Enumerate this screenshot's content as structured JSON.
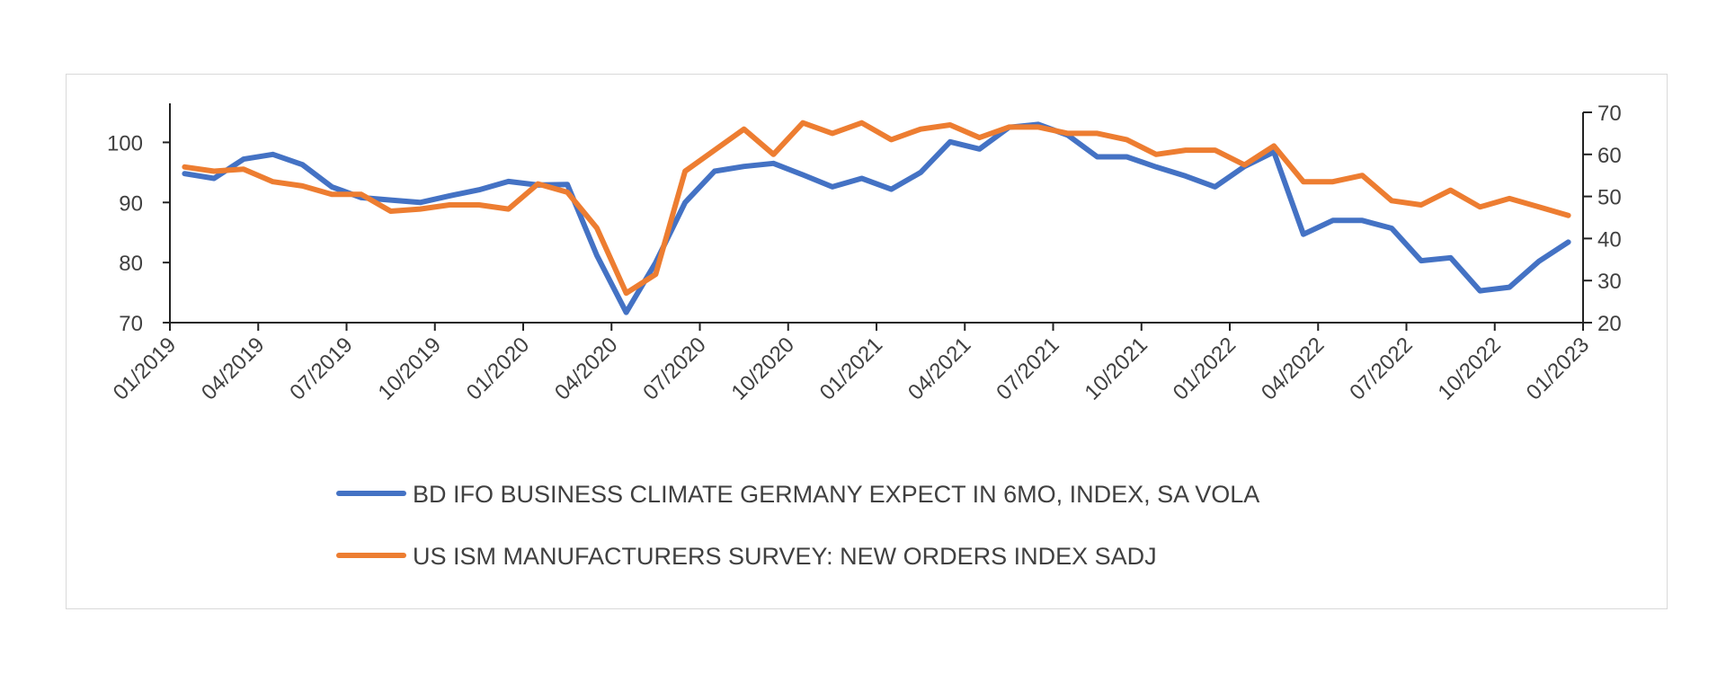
{
  "chart_data": {
    "type": "line",
    "title": "",
    "xlabel": "",
    "ylabel": "",
    "x_ticks": [
      "01/2019",
      "04/2019",
      "07/2019",
      "10/2019",
      "01/2020",
      "04/2020",
      "07/2020",
      "10/2020",
      "01/2021",
      "04/2021",
      "07/2021",
      "10/2021",
      "01/2022",
      "04/2022",
      "07/2022",
      "10/2022",
      "01/2023"
    ],
    "x": [
      "01/2019",
      "02/2019",
      "03/2019",
      "04/2019",
      "05/2019",
      "06/2019",
      "07/2019",
      "08/2019",
      "09/2019",
      "10/2019",
      "11/2019",
      "12/2019",
      "01/2020",
      "02/2020",
      "03/2020",
      "04/2020",
      "05/2020",
      "06/2020",
      "07/2020",
      "08/2020",
      "09/2020",
      "10/2020",
      "11/2020",
      "12/2020",
      "01/2021",
      "02/2021",
      "03/2021",
      "04/2021",
      "05/2021",
      "06/2021",
      "07/2021",
      "08/2021",
      "09/2021",
      "10/2021",
      "11/2021",
      "12/2021",
      "01/2022",
      "02/2022",
      "03/2022",
      "04/2022",
      "05/2022",
      "06/2022",
      "07/2022",
      "08/2022",
      "09/2022",
      "10/2022",
      "11/2022",
      "12/2022"
    ],
    "y_left": {
      "ylim": [
        70,
        105
      ],
      "ticks": [
        70,
        80,
        90,
        100
      ]
    },
    "y_right": {
      "ylim": [
        20,
        70
      ],
      "ticks": [
        20,
        30,
        40,
        50,
        60,
        70
      ]
    },
    "grid": false,
    "legend_position": "bottom",
    "series": [
      {
        "name": "BD IFO BUSINESS CLIMATE GERMANY EXPECT IN 6MO, INDEX, SA VOLA",
        "axis": "left",
        "color": "#4472c4",
        "values": [
          94.8,
          94.0,
          97.2,
          98.0,
          96.3,
          92.6,
          90.8,
          90.4,
          90.0,
          91.1,
          92.1,
          93.5,
          92.9,
          93.0,
          81.2,
          71.7,
          80.0,
          90.0,
          95.2,
          96.0,
          96.5,
          94.6,
          92.6,
          94.0,
          92.2,
          95.0,
          100.1,
          98.9,
          102.5,
          103.0,
          101.2,
          97.6,
          97.6,
          95.9,
          94.4,
          92.6,
          96.0,
          98.4,
          84.7,
          87.0,
          87.0,
          85.7,
          80.3,
          80.8,
          75.3,
          75.9,
          80.2,
          83.4
        ]
      },
      {
        "name": "US ISM MANUFACTURERS SURVEY: NEW ORDERS INDEX SADJ",
        "axis": "right",
        "color": "#ed7d31",
        "values": [
          57.0,
          56.0,
          56.5,
          53.5,
          52.5,
          50.5,
          50.5,
          46.5,
          47.0,
          48.0,
          48.0,
          47.0,
          53.0,
          51.0,
          42.5,
          27.0,
          31.5,
          56.0,
          61.0,
          66.0,
          60.0,
          67.5,
          65.0,
          67.5,
          63.5,
          66.0,
          67.0,
          64.0,
          66.5,
          66.5,
          65.0,
          65.0,
          63.5,
          60.0,
          61.0,
          61.0,
          57.5,
          62.0,
          53.5,
          53.5,
          55.0,
          49.0,
          48.0,
          51.5,
          47.5,
          49.5,
          47.5,
          45.5
        ]
      }
    ]
  }
}
